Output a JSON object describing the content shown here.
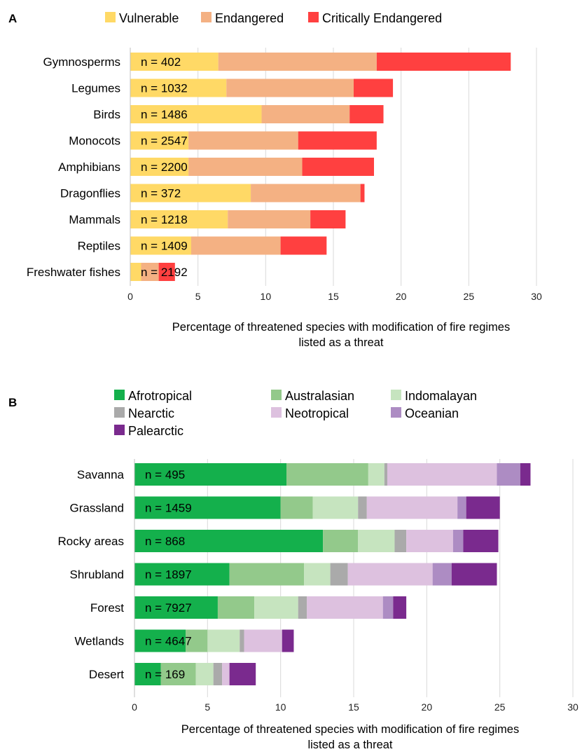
{
  "chart_data": [
    {
      "type": "bar",
      "orientation": "horizontal",
      "stacked": true,
      "panel_letter": "A",
      "categories": [
        "Gymnosperms",
        "Legumes",
        "Birds",
        "Monocots",
        "Amphibians",
        "Dragonflies",
        "Mammals",
        "Reptiles",
        "Freshwater fishes"
      ],
      "n_labels": [
        "n = 402",
        "n = 1032",
        "n = 1486",
        "n = 2547",
        "n = 2200",
        "n = 372",
        "n = 1218",
        "n = 1409",
        "n = 2192"
      ],
      "series": [
        {
          "name": "Vulnerable",
          "color": "#FFD966",
          "values": [
            6.5,
            7.1,
            9.7,
            4.3,
            4.3,
            8.9,
            7.2,
            4.5,
            0.8
          ]
        },
        {
          "name": "Endangered",
          "color": "#F4B183",
          "values": [
            11.7,
            9.4,
            6.5,
            8.1,
            8.4,
            8.1,
            6.1,
            6.6,
            1.3
          ]
        },
        {
          "name": "Critically Endangered",
          "color": "#FF4040",
          "values": [
            9.9,
            2.9,
            2.5,
            5.8,
            5.3,
            0.3,
            2.6,
            3.4,
            1.2
          ]
        }
      ],
      "xlim": [
        0,
        30
      ],
      "xticks": [
        0,
        5,
        10,
        15,
        20,
        25,
        30
      ],
      "xlabel_lines": [
        "Percentage of threatened species with modification of fire regimes",
        "listed as a threat"
      ],
      "grid": "vertical",
      "legend_position": "top"
    },
    {
      "type": "bar",
      "orientation": "horizontal",
      "stacked": true,
      "panel_letter": "B",
      "categories": [
        "Savanna",
        "Grassland",
        "Rocky areas",
        "Shrubland",
        "Forest",
        "Wetlands",
        "Desert"
      ],
      "n_labels": [
        "n = 495",
        "n = 1459",
        "n = 868",
        "n = 1897",
        "n = 7927",
        "n = 4647",
        "n = 169"
      ],
      "series": [
        {
          "name": "Afrotropical",
          "color": "#14B04C",
          "values": [
            10.4,
            10.0,
            12.9,
            6.5,
            5.7,
            3.5,
            1.8
          ]
        },
        {
          "name": "Australasian",
          "color": "#93C98B",
          "values": [
            5.6,
            2.2,
            2.4,
            5.1,
            2.5,
            1.5,
            2.4
          ]
        },
        {
          "name": "Indomalayan",
          "color": "#C6E4BF",
          "values": [
            1.1,
            3.1,
            2.5,
            1.8,
            3.0,
            2.2,
            1.2
          ]
        },
        {
          "name": "Nearctic",
          "color": "#AAAAAA",
          "values": [
            0.2,
            0.6,
            0.8,
            1.2,
            0.6,
            0.3,
            0.6
          ]
        },
        {
          "name": "Neotropical",
          "color": "#DDC1DF",
          "values": [
            7.5,
            6.2,
            3.2,
            5.8,
            5.2,
            2.6,
            0.5
          ]
        },
        {
          "name": "Oceanian",
          "color": "#AD8CC3",
          "values": [
            1.6,
            0.6,
            0.7,
            1.3,
            0.7,
            0.0,
            0.0
          ]
        },
        {
          "name": "Palearctic",
          "color": "#7A2A8E",
          "values": [
            0.7,
            2.3,
            2.4,
            3.1,
            0.9,
            0.8,
            1.8
          ]
        }
      ],
      "xlim": [
        0,
        30
      ],
      "xticks": [
        0,
        5,
        10,
        15,
        20,
        25,
        30
      ],
      "xlabel_lines": [
        "Percentage of threatened species with modification of fire regimes",
        "listed as a threat"
      ],
      "grid": "vertical",
      "legend_position": "top"
    }
  ]
}
